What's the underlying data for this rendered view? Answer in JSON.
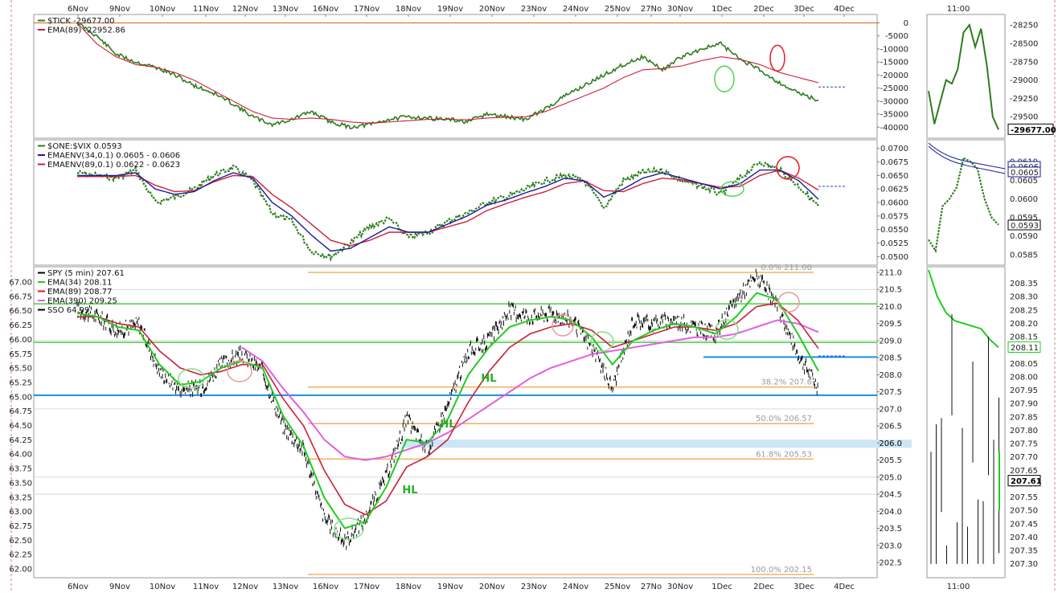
{
  "chart_data": [
    {
      "type": "line",
      "panel": "tick",
      "legend": [
        {
          "label": "$TICK -29677.00",
          "color": "#2e7d1e"
        },
        {
          "label": "EMA(89) -22952.86",
          "color": "#cc1f3a"
        }
      ],
      "series": [
        {
          "name": "$TICK",
          "color": "#2e7d1e",
          "values": [
            0,
            -5000,
            -12000,
            -15000,
            -17000,
            -20000,
            -24000,
            -27000,
            -31000,
            -36000,
            -39000,
            -37000,
            -34000,
            -38000,
            -40000,
            -39000,
            -37000,
            -36000,
            -36500,
            -37000,
            -38000,
            -35000,
            -36000,
            -37000,
            -33000,
            -28000,
            -24000,
            -20000,
            -16000,
            -13000,
            -18000,
            -13000,
            -10000,
            -8000,
            -14000,
            -18000,
            -23000,
            -27000,
            -29677
          ]
        },
        {
          "name": "EMA(89)",
          "color": "#cc1f3a",
          "values": [
            0,
            -8000,
            -13000,
            -16000,
            -17000,
            -19000,
            -22000,
            -26000,
            -30000,
            -34000,
            -36500,
            -37000,
            -36500,
            -37000,
            -38000,
            -38500,
            -38000,
            -37500,
            -37000,
            -37000,
            -37200,
            -36500,
            -36200,
            -36000,
            -34000,
            -31000,
            -28000,
            -25000,
            -21000,
            -18000,
            -17500,
            -16500,
            -14500,
            -13000,
            -14000,
            -16000,
            -19000,
            -21000,
            -22953
          ]
        }
      ],
      "ylim": [
        -43000,
        2000
      ],
      "yticks": [
        0,
        -5000,
        -10000,
        -15000,
        -20000,
        -25000,
        -30000,
        -35000,
        -40000
      ],
      "reference_line": 0,
      "last_value": -29677,
      "inset": {
        "xlabel": "11:00",
        "ylim": [
          -29750,
          -28150
        ],
        "yticks": [
          -28250,
          -28500,
          -28750,
          -29000,
          -29250,
          -29500
        ],
        "values": [
          -29150,
          -29600,
          -29300,
          -29000,
          -29050,
          -28850,
          -28350,
          -28250,
          -28550,
          -28300,
          -28800,
          -29500,
          -29677
        ]
      }
    },
    {
      "type": "line",
      "panel": "one_vix",
      "legend": [
        {
          "label": "$ONE:$VIX 0.0593",
          "color": "#2e7d1e"
        },
        {
          "label": "EMAENV(34,0.1) 0.0605 - 0.0606",
          "color": "#1a1a9c"
        },
        {
          "label": "EMAENV(89,0.1) 0.0622 - 0.0623",
          "color": "#cc1f3a"
        }
      ],
      "series": [
        {
          "name": "$ONE:$VIX",
          "color": "#2e7d1e",
          "values": [
            0.0655,
            0.065,
            0.0645,
            0.066,
            0.06,
            0.061,
            0.0625,
            0.065,
            0.0665,
            0.064,
            0.058,
            0.0565,
            0.051,
            0.05,
            0.0525,
            0.0555,
            0.057,
            0.0535,
            0.0545,
            0.0565,
            0.058,
            0.06,
            0.061,
            0.0625,
            0.064,
            0.065,
            0.064,
            0.059,
            0.064,
            0.0655,
            0.066,
            0.064,
            0.063,
            0.0615,
            0.0645,
            0.0675,
            0.066,
            0.063,
            0.0593
          ]
        },
        {
          "name": "EMAENV(34,0.1)",
          "color": "#1a1a9c",
          "values": [
            0.065,
            0.065,
            0.065,
            0.0655,
            0.0625,
            0.0615,
            0.062,
            0.064,
            0.0655,
            0.0645,
            0.06,
            0.0575,
            0.054,
            0.051,
            0.0515,
            0.0535,
            0.0555,
            0.0545,
            0.0545,
            0.056,
            0.0575,
            0.0595,
            0.0605,
            0.0618,
            0.063,
            0.0645,
            0.064,
            0.061,
            0.0625,
            0.0645,
            0.0655,
            0.0645,
            0.0635,
            0.0625,
            0.0635,
            0.066,
            0.066,
            0.064,
            0.0606
          ]
        },
        {
          "name": "EMAENV(89,0.1)",
          "color": "#cc1f3a",
          "values": [
            0.0648,
            0.0648,
            0.0648,
            0.065,
            0.0632,
            0.062,
            0.0622,
            0.0638,
            0.065,
            0.0648,
            0.0615,
            0.059,
            0.056,
            0.053,
            0.052,
            0.053,
            0.0545,
            0.0545,
            0.0545,
            0.0555,
            0.0565,
            0.0585,
            0.0598,
            0.061,
            0.062,
            0.0635,
            0.064,
            0.0622,
            0.062,
            0.0635,
            0.0645,
            0.0642,
            0.0635,
            0.0628,
            0.063,
            0.065,
            0.066,
            0.0645,
            0.0623
          ]
        }
      ],
      "ylim": [
        0.049,
        0.071
      ],
      "yticks": [
        0.07,
        0.0675,
        0.065,
        0.0625,
        0.06,
        0.0575,
        0.055,
        0.0525,
        0.05
      ],
      "last_value": 0.0593,
      "inset": {
        "ylim": [
          0.0583,
          0.0615
        ],
        "yticks": [
          0.061,
          0.0605,
          0.06,
          0.0595,
          0.059,
          0.0585
        ],
        "labels": [
          "0.0606",
          "0.0605",
          "0.0593"
        ],
        "values": [
          0.0589,
          0.0586,
          0.0598,
          0.06,
          0.0603,
          0.0611,
          0.061,
          0.0608,
          0.06,
          0.0595,
          0.0593
        ]
      }
    },
    {
      "type": "line",
      "panel": "spy",
      "legend": [
        {
          "label": "SPY (5 min) 207.61",
          "color": "#000000"
        },
        {
          "label": "EMA(34) 208.11",
          "color": "#22cc22"
        },
        {
          "label": "EMA(89) 208.77",
          "color": "#cc1f3a"
        },
        {
          "label": "EMA(390) 209.25",
          "color": "#e060e0"
        },
        {
          "label": "SSO 64.99",
          "color": "#000000"
        }
      ],
      "series": [
        {
          "name": "SPY (5 min)",
          "color": "#000000",
          "values": [
            209.9,
            209.7,
            209.3,
            209.5,
            208.1,
            207.6,
            207.6,
            208.3,
            208.6,
            208.1,
            206.5,
            205.8,
            203.8,
            203.1,
            203.8,
            205.0,
            206.7,
            205.8,
            207.1,
            208.7,
            209.0,
            209.9,
            209.7,
            209.8,
            209.6,
            208.8,
            207.6,
            209.6,
            209.5,
            209.6,
            209.4,
            209.2,
            210.2,
            210.9,
            210.0,
            208.6,
            207.61
          ]
        },
        {
          "name": "EMA(34)",
          "color": "#22cc22",
          "values": [
            209.8,
            209.7,
            209.4,
            209.3,
            208.3,
            207.7,
            207.8,
            208.2,
            208.4,
            208.2,
            206.8,
            205.9,
            204.4,
            203.5,
            203.7,
            204.7,
            206.1,
            206.0,
            206.7,
            208.0,
            208.8,
            209.4,
            209.6,
            209.7,
            209.6,
            209.1,
            208.3,
            209.0,
            209.3,
            209.5,
            209.4,
            209.2,
            209.7,
            210.4,
            210.2,
            209.2,
            208.11
          ]
        },
        {
          "name": "EMA(89)",
          "color": "#cc1f3a",
          "values": [
            209.7,
            209.7,
            209.5,
            209.4,
            208.7,
            208.2,
            208.0,
            208.1,
            208.3,
            208.3,
            207.3,
            206.5,
            205.2,
            204.2,
            203.9,
            204.3,
            205.3,
            205.6,
            206.1,
            207.2,
            208.1,
            208.8,
            209.2,
            209.4,
            209.5,
            209.3,
            208.8,
            209.0,
            209.2,
            209.4,
            209.4,
            209.3,
            209.5,
            210.0,
            210.1,
            209.6,
            208.77
          ]
        },
        {
          "name": "EMA(390)",
          "color": "#e060e0",
          "values": [
            null,
            null,
            null,
            null,
            null,
            null,
            null,
            null,
            208.8,
            208.4,
            207.6,
            206.9,
            206.1,
            205.6,
            205.5,
            205.6,
            205.8,
            206.0,
            206.3,
            206.7,
            207.1,
            207.5,
            207.9,
            208.2,
            208.4,
            208.6,
            208.7,
            208.8,
            208.9,
            209.0,
            209.1,
            209.1,
            209.2,
            209.4,
            209.6,
            209.5,
            209.25
          ]
        }
      ],
      "ylim": [
        202.2,
        211.5
      ],
      "yticks": [
        211.0,
        210.5,
        210.0,
        209.5,
        209.0,
        208.5,
        208.0,
        207.5,
        207.0,
        206.5,
        206.0,
        205.5,
        205.0,
        204.5,
        204.0,
        203.5,
        203.0,
        202.5
      ],
      "left_axis": {
        "label": "SSO",
        "ticks": [
          "67.00",
          "66.75",
          "66.50",
          "66.25",
          "66.00",
          "65.75",
          "65.50",
          "65.25",
          "65.00",
          "64.75",
          "64.50",
          "64.25",
          "64.00",
          "63.75",
          "63.50",
          "63.25",
          "63.00",
          "62.75",
          "62.50",
          "62.25",
          "62.00"
        ]
      },
      "fib_levels": [
        {
          "label": "0.0% 211.00",
          "value": 211.0
        },
        {
          "label": "38.2% 207.6",
          "value": 207.64
        },
        {
          "label": "50.0% 206.57",
          "value": 206.57
        },
        {
          "label": "61.8% 205.53",
          "value": 205.53
        },
        {
          "label": "100.0% 202.15",
          "value": 202.15
        }
      ],
      "horizontal_lines": [
        {
          "value": 210.08,
          "color": "#4ccc4c"
        },
        {
          "value": 208.95,
          "color": "#4ccc4c"
        },
        {
          "value": 207.4,
          "color": "#1a8de0"
        },
        {
          "value": 208.52,
          "color": "#1a8de0"
        }
      ],
      "highlight_band": {
        "label": "206.0",
        "from": 205.86,
        "to": 206.1,
        "color": "#cde6f6"
      },
      "annotations": [
        {
          "text": "HL",
          "x": 20,
          "value": 207.85
        },
        {
          "text": "HL",
          "x": 18.4,
          "value": 206.4
        },
        {
          "text": "HL",
          "x": 17,
          "value": 204.6
        }
      ],
      "last_value": 207.61,
      "inset": {
        "xlabel": "11:00",
        "ylim": [
          207.26,
          208.4
        ],
        "yticks": [
          208.35,
          208.3,
          208.25,
          208.2,
          208.15,
          208.1,
          208.05,
          208.0,
          207.95,
          207.9,
          207.85,
          207.8,
          207.75,
          207.7,
          207.65,
          207.6,
          207.55,
          207.5,
          207.45,
          207.4,
          207.35,
          207.3
        ],
        "ema_values": [
          208.4,
          208.3,
          208.24,
          208.21,
          208.2,
          208.19,
          208.18,
          208.14,
          208.11
        ]
      }
    }
  ],
  "x_axis": {
    "labels": [
      "6Nov",
      "9Nov",
      "10Nov",
      "11Nov",
      "12Nov",
      "13Nov",
      "16Nov",
      "17Nov",
      "18Nov",
      "19Nov",
      "20Nov",
      "23Nov",
      "24Nov",
      "25Nov",
      "27No",
      "30Nov",
      "1Dec",
      "2Dec",
      "3Dec",
      "4Dec"
    ]
  }
}
